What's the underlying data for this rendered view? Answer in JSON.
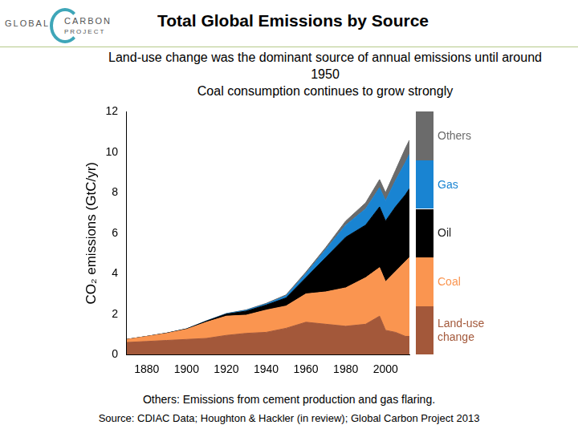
{
  "logo": {
    "left": "GLOBAL",
    "right": "CARBON",
    "bottom": "PROJECT"
  },
  "footnote": "Others: Emissions from cement production and gas flaring.",
  "source": "Source: CDIAC Data; Houghton & Hackler (in review); Global Carbon Project 2013",
  "chart_data": {
    "type": "area",
    "title": "Total Global Emissions by Source",
    "subtitle": [
      "Land-use change was the dominant source of annual emissions until around 1950",
      "Coal consumption continues to grow strongly"
    ],
    "ylabel": "CO₂ emissions (GtC/yr)",
    "stacked": true,
    "grid": false,
    "legend": "right",
    "x": [
      1870,
      1880,
      1890,
      1900,
      1910,
      1920,
      1930,
      1940,
      1950,
      1960,
      1970,
      1980,
      1990,
      1997,
      2000,
      2005,
      2010,
      2012
    ],
    "xlim": [
      1870,
      2012
    ],
    "xticks": [
      1880,
      1900,
      1920,
      1940,
      1960,
      1980,
      2000
    ],
    "ylim": [
      0,
      12
    ],
    "yticks": [
      0,
      2,
      4,
      6,
      8,
      10,
      12
    ],
    "series": [
      {
        "name": "Land-use change",
        "color": "#a3583a",
        "values": [
          0.6,
          0.65,
          0.7,
          0.75,
          0.8,
          0.95,
          1.05,
          1.1,
          1.3,
          1.6,
          1.5,
          1.4,
          1.5,
          1.9,
          1.2,
          1.1,
          0.9,
          0.9
        ]
      },
      {
        "name": "Coal",
        "color": "#fa9550",
        "values": [
          0.15,
          0.25,
          0.35,
          0.5,
          0.8,
          0.95,
          0.9,
          1.1,
          1.1,
          1.4,
          1.6,
          1.9,
          2.3,
          2.4,
          2.4,
          3.0,
          3.7,
          3.9
        ]
      },
      {
        "name": "Oil",
        "color": "#000000",
        "values": [
          0,
          0,
          0.01,
          0.02,
          0.05,
          0.1,
          0.2,
          0.25,
          0.4,
          0.8,
          1.7,
          2.5,
          2.6,
          3.0,
          3.0,
          3.2,
          3.3,
          3.4
        ]
      },
      {
        "name": "Gas",
        "color": "#1984d2",
        "values": [
          0,
          0,
          0,
          0,
          0.01,
          0.02,
          0.04,
          0.05,
          0.1,
          0.2,
          0.4,
          0.6,
          0.8,
          0.95,
          1.0,
          1.3,
          1.6,
          1.7
        ]
      },
      {
        "name": "Others",
        "color": "#6b6b6b",
        "values": [
          0,
          0,
          0,
          0,
          0.01,
          0.01,
          0.02,
          0.03,
          0.05,
          0.08,
          0.1,
          0.2,
          0.3,
          0.4,
          0.4,
          0.5,
          0.7,
          0.7
        ]
      }
    ]
  }
}
